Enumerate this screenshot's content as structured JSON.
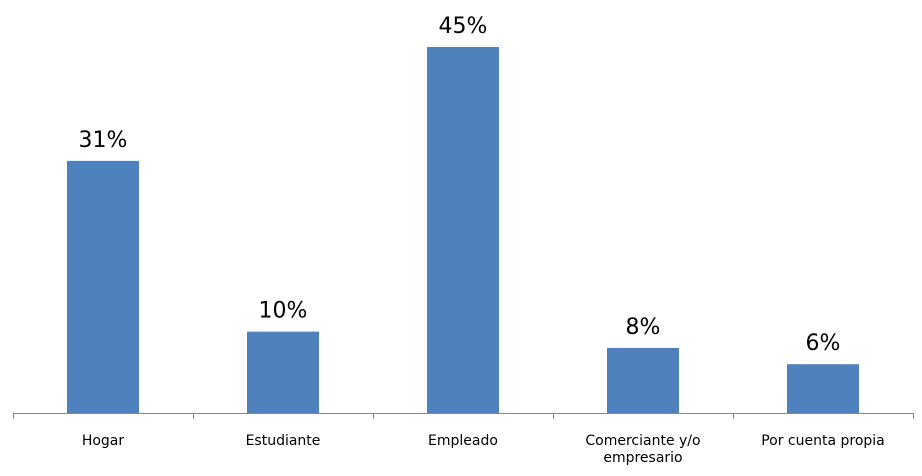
{
  "chart_data": {
    "type": "bar",
    "categories": [
      "Hogar",
      "Estudiante",
      "Empleado",
      "Comerciante y/o empresario",
      "Por cuenta propia"
    ],
    "category_lines": [
      [
        "Hogar"
      ],
      [
        "Estudiante"
      ],
      [
        "Empleado"
      ],
      [
        "Comerciante y/o",
        "empresario"
      ],
      [
        "Por cuenta propia"
      ]
    ],
    "values": [
      31,
      10,
      45,
      8,
      6
    ],
    "data_labels": [
      "31%",
      "10%",
      "45%",
      "8%",
      "6%"
    ],
    "title": "",
    "xlabel": "",
    "ylabel": "",
    "ylim": [
      0,
      45
    ],
    "grid": false,
    "legend": "none",
    "bar_color": "#4F81BD",
    "axis_color": "#868686"
  }
}
